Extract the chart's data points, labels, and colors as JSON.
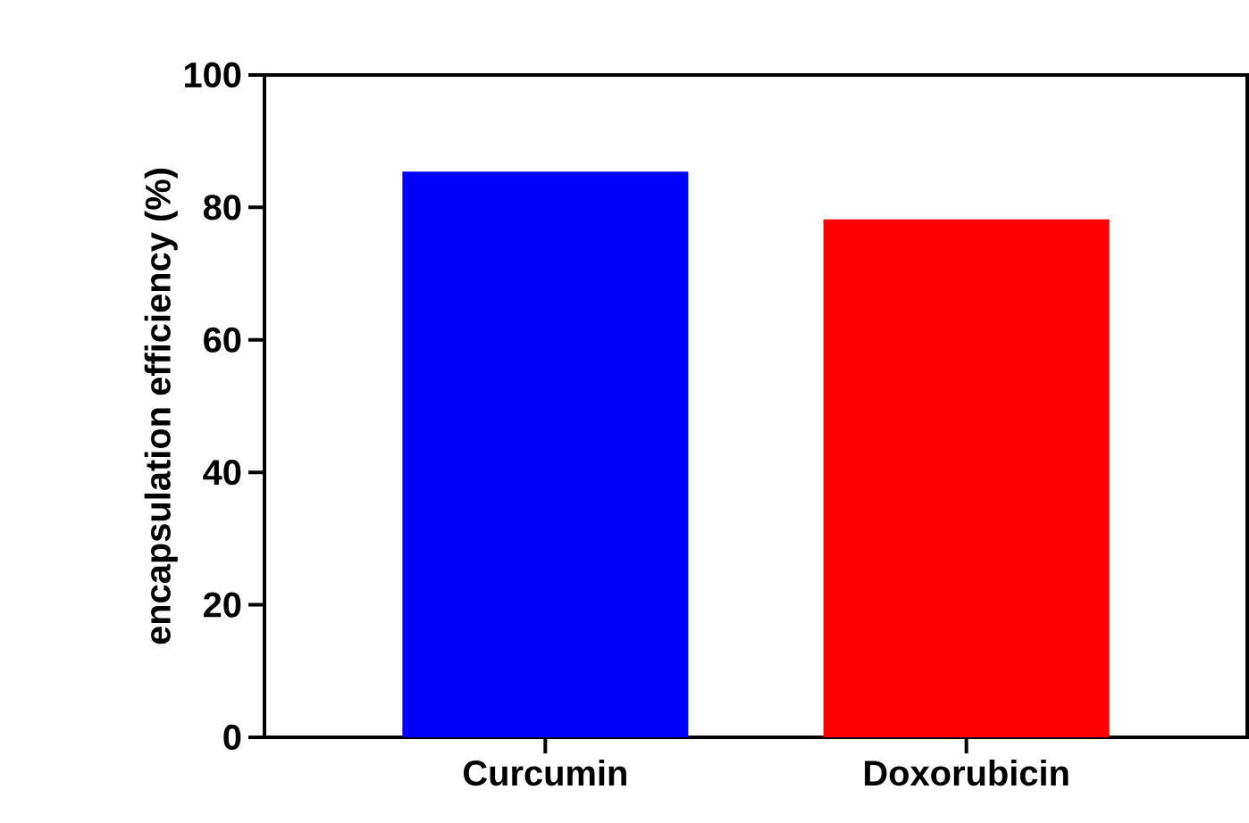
{
  "chart_data": {
    "type": "bar",
    "ylabel": "encapsulation efficiency  (%)",
    "categories": [
      "Curcumin",
      "Doxorubicin"
    ],
    "values": [
      85.4,
      78.2
    ],
    "colors": [
      "#0000ff",
      "#ff0000"
    ],
    "ylim": [
      0,
      100
    ],
    "yticks": [
      0,
      20,
      40,
      60,
      80,
      100
    ],
    "grid": false
  }
}
